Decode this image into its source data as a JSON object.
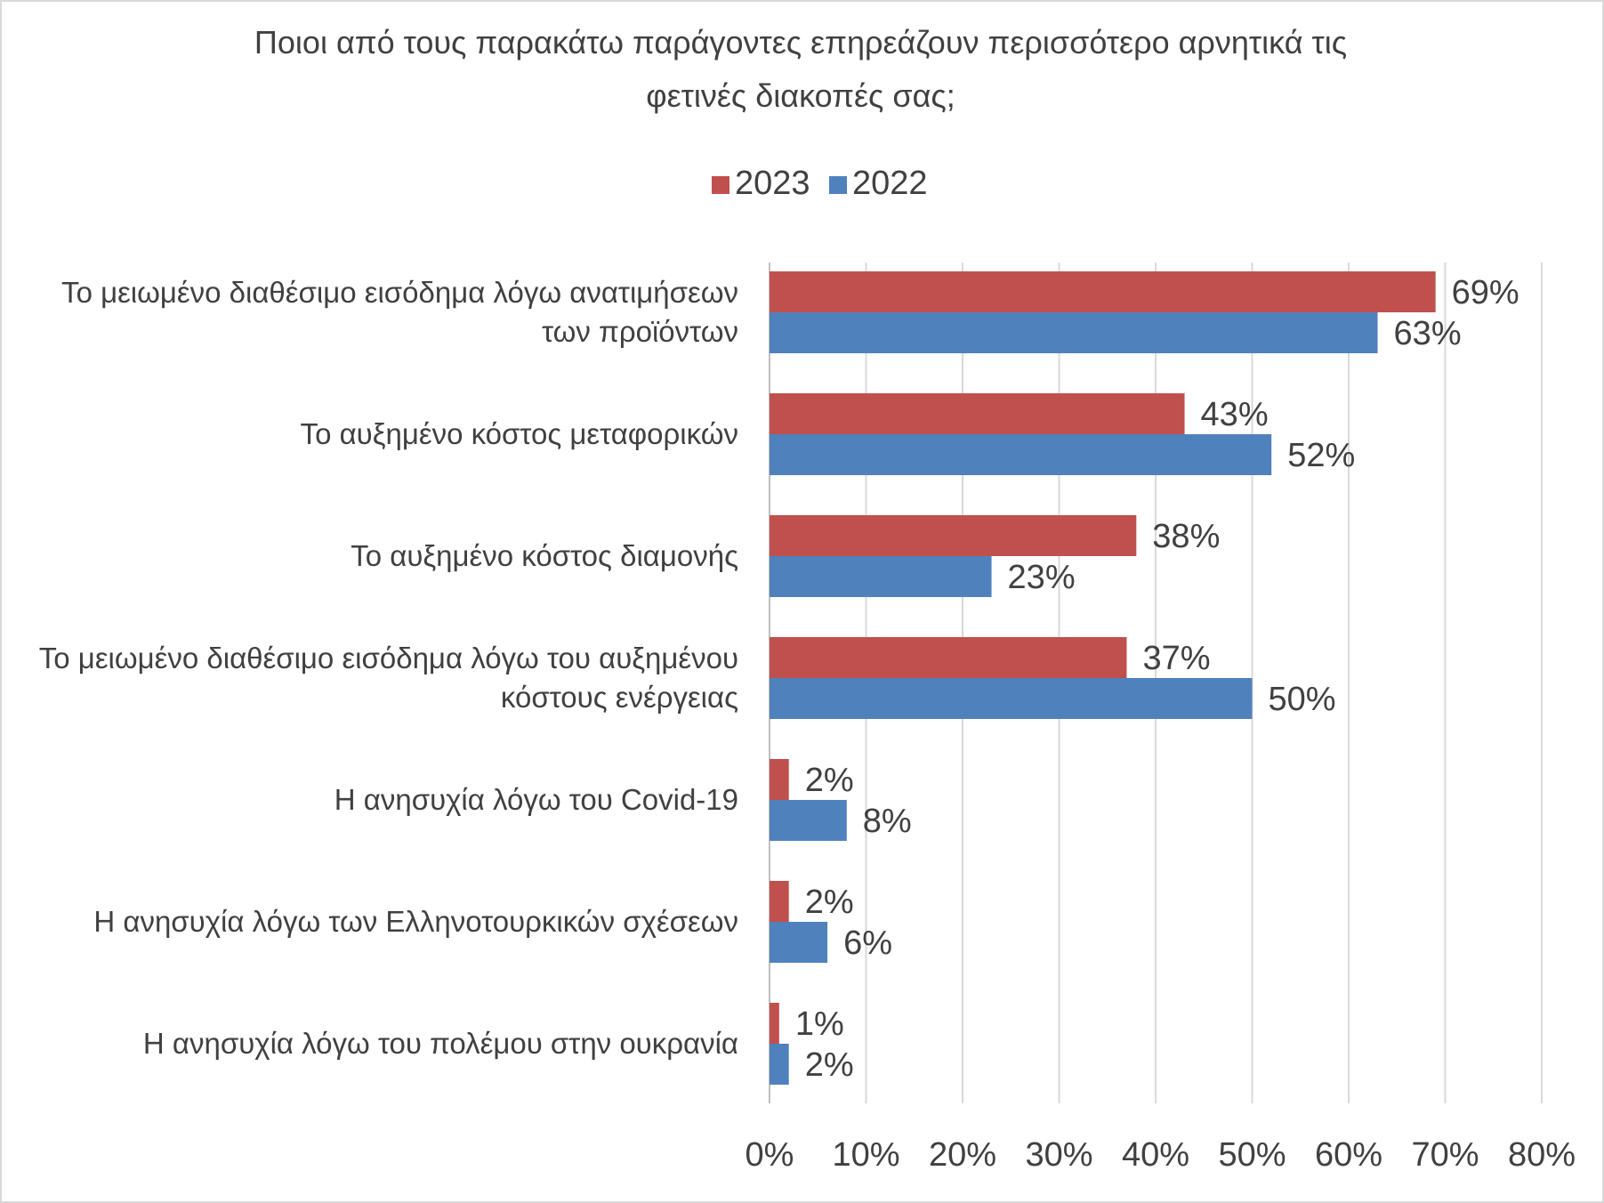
{
  "chart_data": {
    "type": "bar",
    "orientation": "horizontal",
    "title": "Ποιοι από τους παρακάτω παράγοντες επηρεάζουν περισσότερο αρνητικά τις φετινές διακοπές σας;",
    "title_lines": [
      "Ποιοι  από τους  παρακάτω  παράγοντες  επηρεάζουν  περισσότερο  αρνητικά  τις",
      "φετινές  διακοπές  σας;"
    ],
    "legend_position": "top",
    "grid": true,
    "xlim": [
      0,
      80
    ],
    "x_ticks": [
      0,
      10,
      20,
      30,
      40,
      50,
      60,
      70,
      80
    ],
    "x_tick_labels": [
      "0%",
      "10%",
      "20%",
      "30%",
      "40%",
      "50%",
      "60%",
      "70%",
      "80%"
    ],
    "categories": [
      [
        "Το μειωμένο διαθέσιμο  εισόδημα  λόγω ανατιμήσεων",
        "των προϊόντων"
      ],
      [
        "Το αυξημένο κόστος μεταφορικών"
      ],
      [
        "Το αυξημένο κόστος διαμονής"
      ],
      [
        "Το μειωμένο διαθέσιμο  εισόδημα  λόγω του αυξημένου",
        "κόστους ενέργειας"
      ],
      [
        "Η ανησυχία λόγω του  Covid-19"
      ],
      [
        "Η ανησυχία λόγω των Ελληνοτουρκικών σχέσεων"
      ],
      [
        "Η ανησυχία λόγω του  πολέμου  στην ουκρανία"
      ]
    ],
    "series": [
      {
        "name": "2023",
        "color": "#c0504d",
        "values": [
          69,
          43,
          38,
          37,
          2,
          2,
          1
        ],
        "labels": [
          "69%",
          "43%",
          "38%",
          "37%",
          "2%",
          "2%",
          "1%"
        ]
      },
      {
        "name": "2022",
        "color": "#4f81bd",
        "values": [
          63,
          52,
          23,
          50,
          8,
          6,
          2
        ],
        "labels": [
          "63%",
          "52%",
          "23%",
          "50%",
          "8%",
          "6%",
          "2%"
        ]
      }
    ]
  }
}
